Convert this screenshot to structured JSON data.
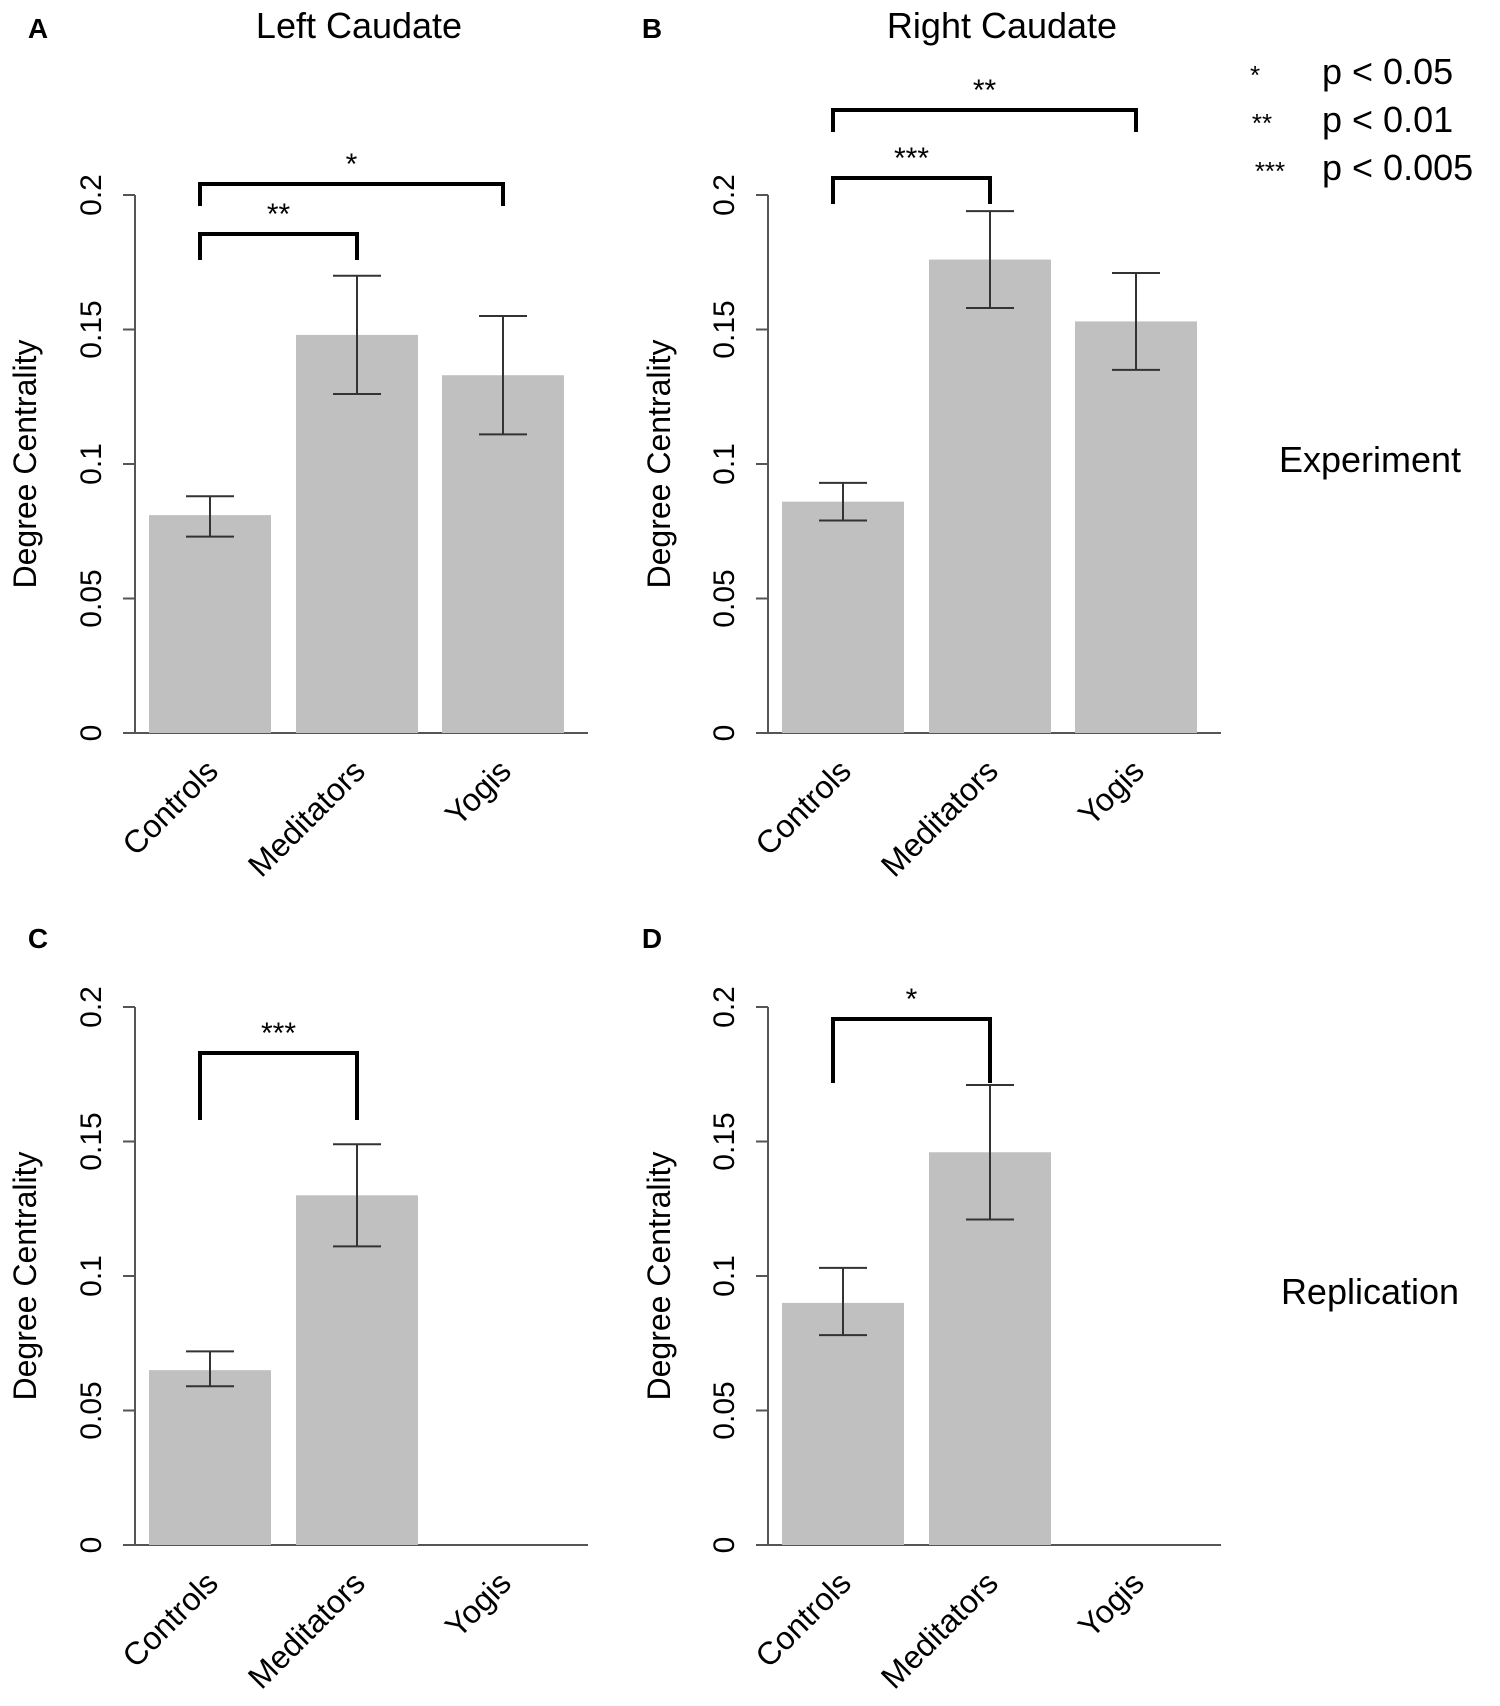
{
  "legend": [
    {
      "symbol": "*",
      "text": "p < 0.05"
    },
    {
      "symbol": "**",
      "text": "p < 0.01"
    },
    {
      "symbol": "***",
      "text": "p < 0.005"
    }
  ],
  "row_labels": [
    "Experiment",
    "Replication"
  ],
  "colors": {
    "bar": "#c0c0c0",
    "axis": "#555555",
    "error": "#333333",
    "bracket": "#000000"
  },
  "chart_data": [
    {
      "panel": "A",
      "title": "Left Caudate",
      "type": "bar",
      "ylabel": "Degree Centrality",
      "ylim": [
        0,
        0.2
      ],
      "yticks": [
        "0",
        "0.05",
        "0.1",
        "0.15",
        "0.2"
      ],
      "ytick_values": [
        0,
        0.05,
        0.1,
        0.15,
        0.2
      ],
      "categories": [
        "Controls",
        "Meditators",
        "Yogis"
      ],
      "values": [
        0.081,
        0.148,
        0.133
      ],
      "error_low": [
        0.073,
        0.126,
        0.111
      ],
      "error_high": [
        0.088,
        0.17,
        0.155
      ],
      "brackets": [
        {
          "from": 0,
          "to": 1,
          "label": "**",
          "level": 1
        },
        {
          "from": 0,
          "to": 2,
          "label": "*",
          "level": 2
        }
      ]
    },
    {
      "panel": "B",
      "title": "Right Caudate",
      "type": "bar",
      "ylabel": "Degree Centrality",
      "ylim": [
        0,
        0.2
      ],
      "yticks": [
        "0",
        "0.05",
        "0.1",
        "0.15",
        "0.2"
      ],
      "ytick_values": [
        0,
        0.05,
        0.1,
        0.15,
        0.2
      ],
      "categories": [
        "Controls",
        "Meditators",
        "Yogis"
      ],
      "values": [
        0.086,
        0.176,
        0.153
      ],
      "error_low": [
        0.079,
        0.158,
        0.135
      ],
      "error_high": [
        0.093,
        0.194,
        0.171
      ],
      "brackets": [
        {
          "from": 0,
          "to": 1,
          "label": "***",
          "level": 1
        },
        {
          "from": 0,
          "to": 2,
          "label": "**",
          "level": 2
        }
      ]
    },
    {
      "panel": "C",
      "title": "",
      "type": "bar",
      "ylabel": "Degree Centrality",
      "ylim": [
        0,
        0.2
      ],
      "yticks": [
        "0",
        "0.05",
        "0.1",
        "0.15",
        "0.2"
      ],
      "ytick_values": [
        0,
        0.05,
        0.1,
        0.15,
        0.2
      ],
      "categories": [
        "Controls",
        "Meditators",
        "Yogis"
      ],
      "values": [
        0.065,
        0.13,
        null
      ],
      "error_low": [
        0.059,
        0.111,
        null
      ],
      "error_high": [
        0.072,
        0.149,
        null
      ],
      "brackets": [
        {
          "from": 0,
          "to": 1,
          "label": "***",
          "level": 1
        }
      ]
    },
    {
      "panel": "D",
      "title": "",
      "type": "bar",
      "ylabel": "Degree Centrality",
      "ylim": [
        0,
        0.2
      ],
      "yticks": [
        "0",
        "0.05",
        "0.1",
        "0.15",
        "0.2"
      ],
      "ytick_values": [
        0,
        0.05,
        0.1,
        0.15,
        0.2
      ],
      "categories": [
        "Controls",
        "Meditators",
        "Yogis"
      ],
      "values": [
        0.09,
        0.146,
        null
      ],
      "error_low": [
        0.078,
        0.121,
        null
      ],
      "error_high": [
        0.103,
        0.171,
        null
      ],
      "brackets": [
        {
          "from": 0,
          "to": 1,
          "label": "*",
          "level": 1
        }
      ]
    }
  ]
}
